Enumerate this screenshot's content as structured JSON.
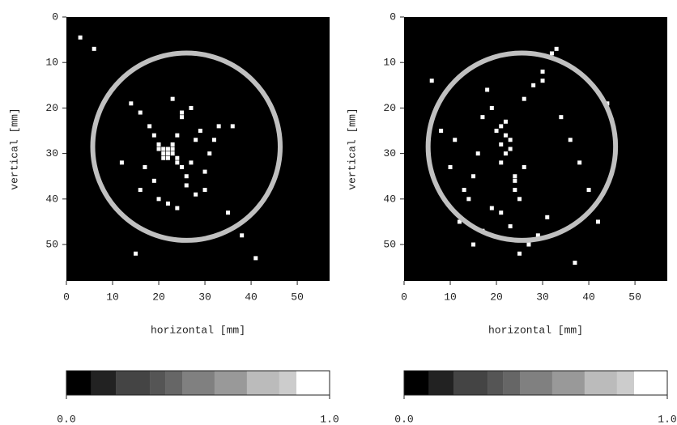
{
  "chart_data": [
    {
      "type": "scatter",
      "xlabel": "horizontal [mm]",
      "ylabel": "vertical [mm]",
      "xlim": [
        0,
        57
      ],
      "ylim": [
        0,
        58
      ],
      "xticks": [
        0,
        10,
        20,
        30,
        40,
        50
      ],
      "yticks": [
        0,
        10,
        20,
        30,
        40,
        50
      ],
      "background": "#000000",
      "color": "#ffffff",
      "x": [
        3,
        6,
        14,
        16,
        18,
        19,
        20,
        21,
        21,
        22,
        22,
        23,
        23,
        24,
        24,
        25,
        25,
        26,
        27,
        28,
        29,
        30,
        31,
        17,
        19,
        20,
        22,
        24,
        26,
        28,
        30,
        32,
        33,
        36,
        12,
        41,
        38,
        15,
        23,
        25,
        27,
        21,
        22,
        23,
        24,
        20,
        35,
        16
      ],
      "y": [
        4.5,
        7,
        19,
        21,
        24,
        26,
        28,
        29,
        30,
        31,
        29,
        30,
        28,
        31,
        26,
        22,
        33,
        35,
        32,
        27,
        25,
        38,
        30,
        33,
        36,
        40,
        41,
        42,
        37,
        39,
        34,
        27,
        24,
        24,
        32,
        53,
        48,
        52,
        18,
        21,
        20,
        31,
        30,
        29,
        32,
        29,
        43,
        38
      ],
      "circle": {
        "cx": 26,
        "cy": 28.5,
        "r": 20.3,
        "color": "#c0c0c0"
      },
      "colorbar": {
        "lim": [
          0,
          1
        ],
        "ticks": [
          {
            "value": 0,
            "label": "0.0"
          },
          {
            "value": 1,
            "label": "1.0"
          }
        ],
        "bounds": [
          0,
          0.095,
          0.19,
          0.317,
          0.378,
          0.44,
          0.563,
          0.686,
          0.809,
          0.874,
          1
        ],
        "colors": [
          "#000000",
          "#222222",
          "#444444",
          "#555555",
          "#666666",
          "#808080",
          "#999999",
          "#bbbbbb",
          "#cccccc",
          "#ffffff"
        ]
      }
    },
    {
      "type": "scatter",
      "xlabel": "horizontal [mm]",
      "ylabel": "vertical [mm]",
      "xlim": [
        0,
        57
      ],
      "ylim": [
        0,
        58
      ],
      "xticks": [
        0,
        10,
        20,
        30,
        40,
        50
      ],
      "yticks": [
        0,
        10,
        20,
        30,
        40,
        50
      ],
      "background": "#000000",
      "color": "#ffffff",
      "x": [
        21,
        22,
        21,
        22,
        23,
        20,
        21,
        22,
        23,
        24,
        24,
        25,
        19,
        18,
        17,
        16,
        15,
        14,
        12,
        10,
        8,
        6,
        26,
        28,
        30,
        32,
        34,
        36,
        38,
        40,
        42,
        44,
        33,
        31,
        29,
        27,
        25,
        23,
        21,
        19,
        17,
        15,
        13,
        11,
        24,
        26,
        37,
        30
      ],
      "y": [
        24,
        26,
        28,
        30,
        27,
        25,
        32,
        23,
        29,
        35,
        38,
        40,
        20,
        16,
        22,
        30,
        35,
        40,
        45,
        33,
        25,
        14,
        18,
        15,
        12,
        8,
        22,
        27,
        32,
        38,
        45,
        19,
        7,
        44,
        48,
        50,
        52,
        46,
        43,
        42,
        47,
        50,
        38,
        27,
        36,
        33,
        54,
        14
      ],
      "circle": {
        "cx": 25.5,
        "cy": 28.5,
        "r": 20.3,
        "color": "#c0c0c0"
      },
      "colorbar": {
        "lim": [
          0,
          1
        ],
        "ticks": [
          {
            "value": 0,
            "label": "0.0"
          },
          {
            "value": 1,
            "label": "1.0"
          }
        ],
        "bounds": [
          0,
          0.095,
          0.19,
          0.317,
          0.378,
          0.44,
          0.563,
          0.686,
          0.809,
          0.874,
          1
        ],
        "colors": [
          "#000000",
          "#222222",
          "#444444",
          "#555555",
          "#666666",
          "#808080",
          "#999999",
          "#bbbbbb",
          "#cccccc",
          "#ffffff"
        ]
      }
    }
  ]
}
